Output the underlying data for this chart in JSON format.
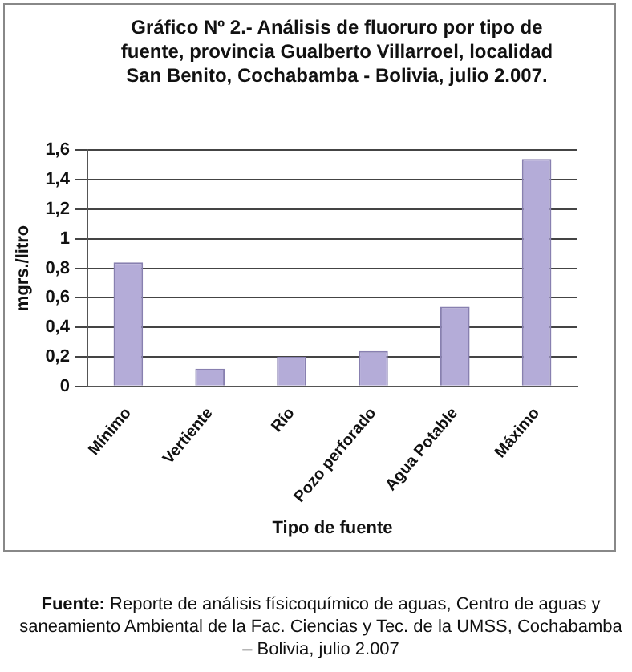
{
  "chart_data": {
    "type": "bar",
    "title": "Gráfico Nº 2.- Análisis de fluoruro por tipo de fuente, provincia Gualberto Villarroel, localidad San Benito, Cochabamba - Bolivia, julio 2.007.",
    "xlabel": "Tipo de fuente",
    "ylabel": "mgrs./litro",
    "categories": [
      "Mínimo",
      "Vertiente",
      "Río",
      "Pozo perforado",
      "Agua Potable",
      "Máximo"
    ],
    "values": [
      0.84,
      0.12,
      0.2,
      0.24,
      0.54,
      1.54
    ],
    "color": "#b4acd8",
    "ylim": [
      0,
      1.6
    ],
    "yticks": [
      0,
      {
        "value": 0.2,
        "label": "0,2"
      },
      {
        "value": 0.4,
        "label": "0,4"
      },
      {
        "value": 0.6,
        "label": "0,6"
      },
      {
        "value": 0.8,
        "label": "0,8"
      },
      1,
      {
        "value": 1.2,
        "label": "1,2"
      },
      {
        "value": 1.4,
        "label": "1,4"
      },
      {
        "value": 1.6,
        "label": "1,6"
      }
    ],
    "grid": "y",
    "legend": false,
    "annotations": [
      "Fuente: Reporte de análisis físicoquímico de aguas, Centro de aguas y saneamiento Ambiental de la Fac. Ciencias y Tec. de la UMSS, Cochabamba – Bolivia, julio 2.007"
    ]
  }
}
